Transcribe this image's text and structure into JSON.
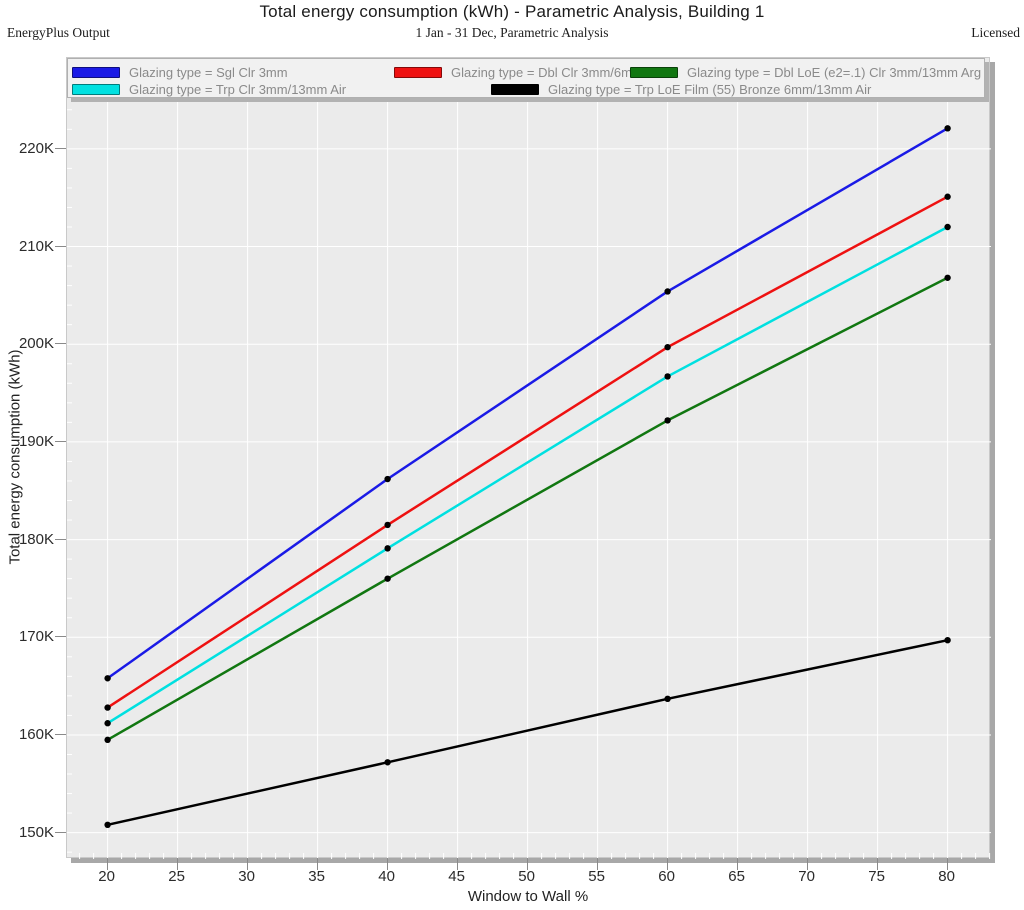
{
  "header": {
    "title": "Total energy consumption (kWh) - Parametric Analysis, Building 1",
    "left": "EnergyPlus Output",
    "center": "1 Jan - 31 Dec, Parametric Analysis",
    "right": "Licensed"
  },
  "chart_data": {
    "type": "line",
    "title": "Total energy consumption (kWh) - Parametric Analysis, Building 1",
    "xlabel": "Window to Wall %",
    "ylabel": "Total energy consumption (kWh)",
    "x": [
      20,
      40,
      60,
      80
    ],
    "xlim": [
      17.1,
      83.1
    ],
    "ylim": [
      147300,
      229300
    ],
    "x_ticks": [
      20,
      25,
      30,
      35,
      40,
      45,
      50,
      55,
      60,
      65,
      70,
      75,
      80
    ],
    "y_ticks": [
      150000,
      160000,
      170000,
      180000,
      190000,
      200000,
      210000,
      220000
    ],
    "y_tick_labels": [
      "150K",
      "160K",
      "170K",
      "180K",
      "190K",
      "200K",
      "210K",
      "220K"
    ],
    "grid": "on",
    "legend_position": "top",
    "marker_color": "#000000",
    "series": [
      {
        "name": "Glazing type = Sgl Clr 3mm",
        "color": "#1a1ae6",
        "values": [
          165800,
          186200,
          205400,
          222100
        ]
      },
      {
        "name": "Glazing type = Dbl Clr 3mm/6mm Air",
        "color": "#ee1111",
        "values": [
          162800,
          181500,
          199700,
          215100
        ]
      },
      {
        "name": "Glazing type = Dbl LoE (e2=.1) Clr 3mm/13mm Arg",
        "color": "#117711",
        "values": [
          159500,
          176000,
          192200,
          206800
        ]
      },
      {
        "name": "Glazing type = Trp Clr 3mm/13mm Air",
        "color": "#00e0e0",
        "values": [
          161200,
          179100,
          196700,
          212000
        ]
      },
      {
        "name": "Glazing type = Trp LoE Film (55) Bronze 6mm/13mm Air",
        "color": "#000000",
        "values": [
          150800,
          157200,
          163700,
          169700
        ]
      }
    ]
  }
}
